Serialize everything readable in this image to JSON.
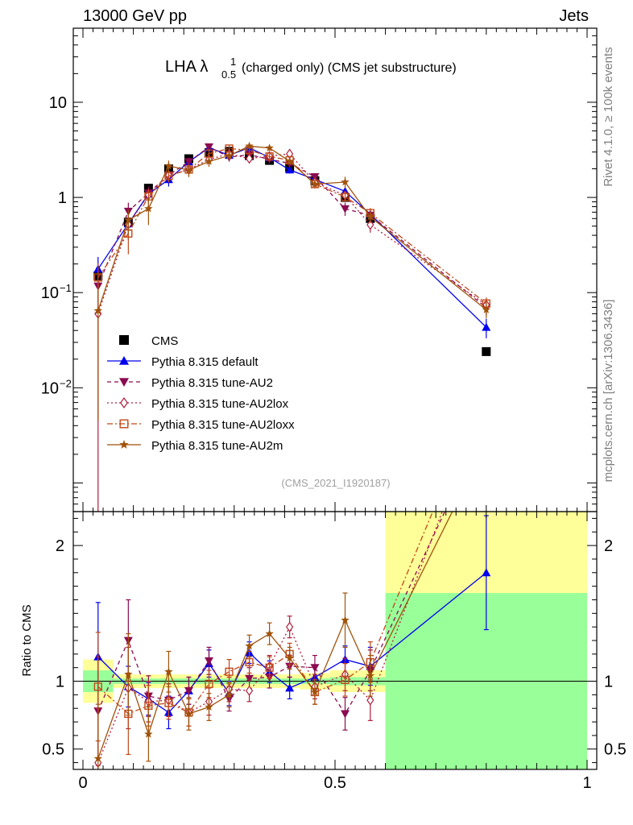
{
  "header": {
    "left": "13000 GeV pp",
    "right": "Jets"
  },
  "side_labels": {
    "rivet": "Rivet 4.1.0, ≥ 100k events",
    "mcplots": "mcplots.cern.ch [arXiv:1306.3436]"
  },
  "chart_data": {
    "type": "line",
    "title": "LHA λ",
    "title_sup": "1",
    "title_sub": "0.5",
    "title_rest": "(charged only) (CMS jet substructure)",
    "analysis_id": "(CMS_2021_I1920187)",
    "xlim": [
      0,
      1
    ],
    "x_ticks": [
      {
        "v": 0,
        "label": "0"
      },
      {
        "v": 0.5,
        "label": "0.5"
      },
      {
        "v": 1,
        "label": "1"
      }
    ],
    "main": {
      "yscale": "log",
      "ylim": [
        0.0005,
        60
      ],
      "y_ticks": [
        {
          "v": 10,
          "label": "10"
        },
        {
          "v": 1,
          "label": "1"
        },
        {
          "v": 0.1,
          "label": "10",
          "exp": "−1"
        },
        {
          "v": 0.01,
          "label": "10",
          "exp": "−2"
        }
      ]
    },
    "ratio": {
      "ylabel": "Ratio to CMS",
      "ylim": [
        0.35,
        2.25
      ],
      "y_ticks": [
        {
          "v": 0.5,
          "label": "0.5"
        },
        {
          "v": 1,
          "label": "1"
        },
        {
          "v": 2,
          "label": "2"
        }
      ]
    },
    "x": [
      0.03,
      0.09,
      0.13,
      0.17,
      0.21,
      0.25,
      0.29,
      0.33,
      0.37,
      0.41,
      0.46,
      0.52,
      0.57,
      0.8
    ],
    "data": {
      "name": "CMS",
      "values": [
        0.15,
        0.55,
        1.25,
        2.0,
        2.55,
        2.95,
        3.05,
        2.75,
        2.45,
        2.05,
        1.5,
        1.0,
        0.6,
        0.024
      ],
      "band_edges": [
        0.0,
        0.06,
        0.11,
        0.15,
        0.19,
        0.23,
        0.27,
        0.31,
        0.35,
        0.39,
        0.43,
        0.49,
        0.55,
        0.6,
        1.0
      ],
      "green": [
        0.08,
        0.02,
        0.02,
        0.02,
        0.02,
        0.02,
        0.02,
        0.02,
        0.02,
        0.02,
        0.02,
        0.03,
        0.03,
        0.65
      ],
      "yellow": [
        0.16,
        0.05,
        0.05,
        0.05,
        0.05,
        0.05,
        0.05,
        0.05,
        0.05,
        0.05,
        0.06,
        0.08,
        0.08,
        1.3
      ]
    },
    "series": [
      {
        "name": "Pythia 8.315 default",
        "color": "#0000ee",
        "dash": "",
        "marker": "triangle-up",
        "ratio": [
          1.18,
          0.96,
          0.87,
          0.77,
          0.93,
          1.13,
          0.91,
          1.21,
          1.07,
          0.95,
          1.03,
          1.16,
          1.11,
          1.8
        ],
        "ratio_err": [
          0.4,
          0.15,
          0.12,
          0.12,
          0.1,
          0.1,
          0.09,
          0.08,
          0.08,
          0.08,
          0.09,
          0.1,
          0.14,
          0.42
        ]
      },
      {
        "name": "Pythia 8.315 tune-AU2",
        "color": "#8b0a50",
        "dash": "5,4",
        "marker": "triangle-down",
        "ratio": [
          0.78,
          1.3,
          0.89,
          0.86,
          0.93,
          1.15,
          0.87,
          1.02,
          1.03,
          1.11,
          1.1,
          0.76,
          1.08,
          2.9
        ],
        "ratio_err": [
          0.4,
          0.3,
          0.15,
          0.12,
          0.1,
          0.1,
          0.09,
          0.08,
          0.08,
          0.08,
          0.09,
          0.12,
          0.15,
          0.5
        ]
      },
      {
        "name": "Pythia 8.315 tune-AU2lox",
        "color": "#b01e3c",
        "dash": "2,3",
        "marker": "diamond",
        "ratio": [
          0.4,
          0.95,
          0.85,
          0.86,
          0.77,
          0.85,
          0.94,
          0.93,
          1.11,
          1.4,
          0.96,
          1.05,
          0.86,
          3.1
        ],
        "ratio_err": [
          0.4,
          0.3,
          0.15,
          0.12,
          0.1,
          0.1,
          0.09,
          0.08,
          0.08,
          0.08,
          0.09,
          0.12,
          0.15,
          0.5
        ]
      },
      {
        "name": "Pythia 8.315 tune-AU2loxx",
        "color": "#c04818",
        "dash": "7,3,2,3",
        "marker": "square-open",
        "ratio": [
          0.96,
          0.76,
          0.82,
          0.84,
          0.77,
          0.98,
          1.07,
          1.14,
          1.1,
          1.2,
          0.92,
          1.01,
          1.14,
          3.2
        ],
        "ratio_err": [
          0.4,
          0.3,
          0.15,
          0.12,
          0.1,
          0.1,
          0.09,
          0.08,
          0.08,
          0.08,
          0.09,
          0.12,
          0.15,
          0.5
        ]
      },
      {
        "name": "Pythia 8.315 tune-AU2m",
        "color": "#a0520a",
        "dash": "",
        "marker": "star",
        "ratio": [
          0.43,
          1.05,
          0.61,
          1.07,
          0.76,
          0.81,
          0.9,
          1.26,
          1.35,
          1.17,
          0.92,
          1.45,
          1.04,
          2.75
        ],
        "ratio_err": [
          0.4,
          0.3,
          0.2,
          0.15,
          0.12,
          0.1,
          0.09,
          0.08,
          0.08,
          0.08,
          0.09,
          0.2,
          0.15,
          0.5
        ]
      }
    ],
    "legend_placement": "lower-left"
  },
  "colors": {
    "green_band": "#99ff99",
    "yellow_band": "#ffff99",
    "analysis_label": "#a0a0a0",
    "side_label": "#808080"
  }
}
